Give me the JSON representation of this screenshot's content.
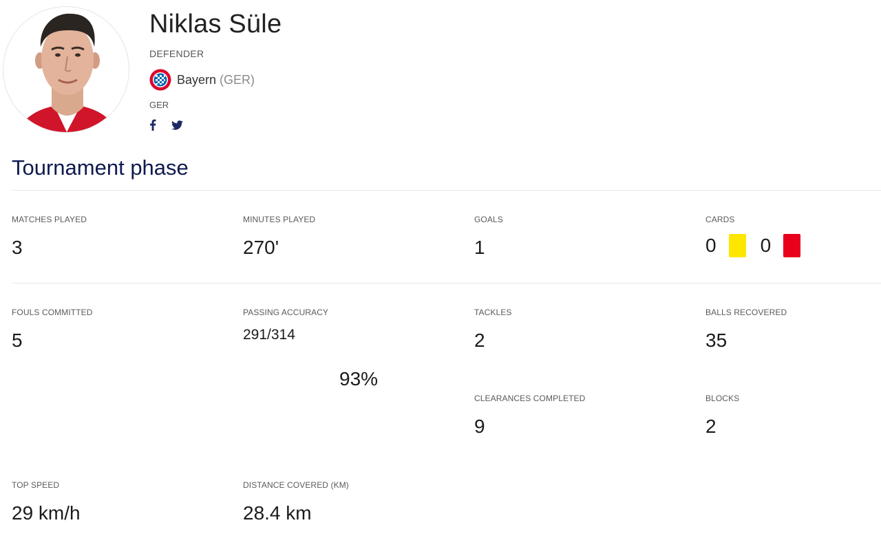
{
  "player": {
    "name": "Niklas Süle",
    "position": "DEFENDER",
    "club": "Bayern",
    "club_country": "(GER)",
    "nationality": "GER"
  },
  "social": {
    "facebook_icon": "facebook-icon",
    "twitter_icon": "twitter-icon"
  },
  "section": {
    "title": "Tournament phase"
  },
  "stats": {
    "matches_played": {
      "label": "MATCHES PLAYED",
      "value": "3"
    },
    "minutes_played": {
      "label": "MINUTES PLAYED",
      "value": "270'"
    },
    "goals": {
      "label": "GOALS",
      "value": "1"
    },
    "cards": {
      "label": "CARDS",
      "yellow": "0",
      "red": "0",
      "yellow_color": "#ffe600",
      "red_color": "#e8001c"
    },
    "fouls_committed": {
      "label": "FOULS COMMITTED",
      "value": "5"
    },
    "passing_accuracy": {
      "label": "PASSING ACCURACY",
      "fraction": "291/314",
      "percent": "93%"
    },
    "tackles": {
      "label": "TACKLES",
      "value": "2"
    },
    "balls_recovered": {
      "label": "BALLS RECOVERED",
      "value": "35"
    },
    "clearances_completed": {
      "label": "CLEARANCES COMPLETED",
      "value": "9"
    },
    "blocks": {
      "label": "BLOCKS",
      "value": "2"
    },
    "top_speed": {
      "label": "TOP SPEED",
      "value": "29 km/h"
    },
    "distance_covered": {
      "label": "DISTANCE COVERED (KM)",
      "value": "28.4 km"
    }
  }
}
